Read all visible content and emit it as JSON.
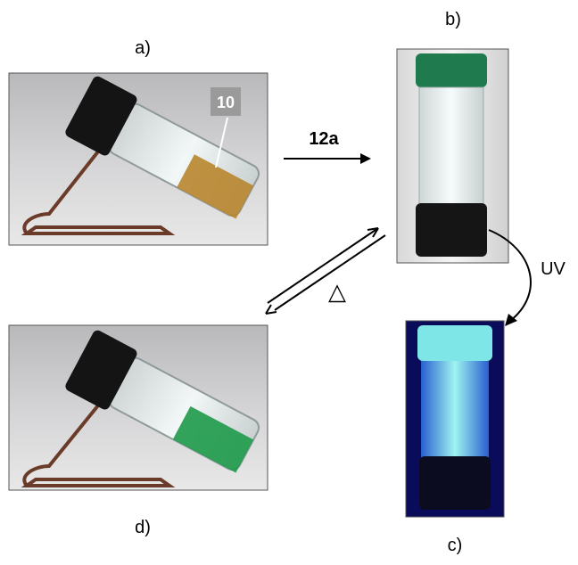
{
  "panel_labels": {
    "a": "a)",
    "b": "b)",
    "c": "c)",
    "d": "d)"
  },
  "compound_label": "10",
  "reagent_label": "12a",
  "uv_label": "UV",
  "heat_label": "△"
}
